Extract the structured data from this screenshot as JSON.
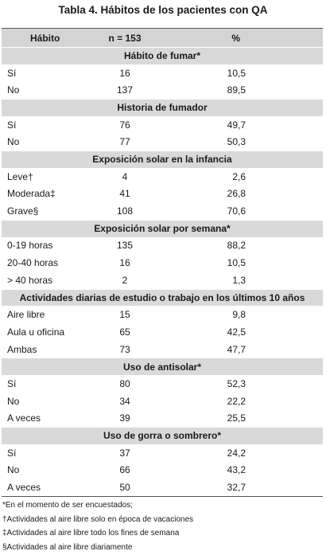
{
  "title": "Tabla 4. Hábitos de los pacientes con QA",
  "table": {
    "header": [
      "Hábito",
      "n = 153",
      "%"
    ],
    "sections": [
      {
        "title": "Hábito de fumar*",
        "rows": [
          [
            "Sí",
            "16",
            "10,5"
          ],
          [
            "No",
            "137",
            "89,5"
          ]
        ]
      },
      {
        "title": "Historia de fumador",
        "rows": [
          [
            "Sí",
            "76",
            "49,7"
          ],
          [
            "No",
            "77",
            "50,3"
          ]
        ]
      },
      {
        "title": "Exposición solar en la infancia",
        "rows": [
          [
            "Leve†",
            "4",
            "2,6"
          ],
          [
            "Moderada‡",
            "41",
            "26,8"
          ],
          [
            "Grave§",
            "108",
            "70,6"
          ]
        ]
      },
      {
        "title": "Exposición solar por semana*",
        "rows": [
          [
            "0-19 horas",
            "135",
            "88,2"
          ],
          [
            "20-40 horas",
            "16",
            "10,5"
          ],
          [
            "> 40 horas",
            "2",
            "1,3"
          ]
        ]
      },
      {
        "title": "Actividades diarias de estudio o trabajo en los últimos 10 años",
        "rows": [
          [
            "Aire libre",
            "15",
            "9,8"
          ],
          [
            "Aula u oficina",
            "65",
            "42,5"
          ],
          [
            "Ambas",
            "73",
            "47,7"
          ]
        ]
      },
      {
        "title": "Uso de antisolar*",
        "rows": [
          [
            "Sí",
            "80",
            "52,3"
          ],
          [
            "No",
            "34",
            "22,2"
          ],
          [
            "A veces",
            "39",
            "25,5"
          ]
        ]
      },
      {
        "title": "Uso de gorra o sombrero*",
        "rows": [
          [
            "Sí",
            "37",
            "24,2"
          ],
          [
            "No",
            "66",
            "43,2"
          ],
          [
            "A veces",
            "50",
            "32,7"
          ]
        ]
      }
    ]
  },
  "footnotes": [
    "*En el momento de ser encuestados;",
    "†Actividades al aire libre solo en época de vacaciones",
    "‡Actividades al aire libre todo los fines de semana",
    "§Actividades al aire libre diariamente"
  ]
}
